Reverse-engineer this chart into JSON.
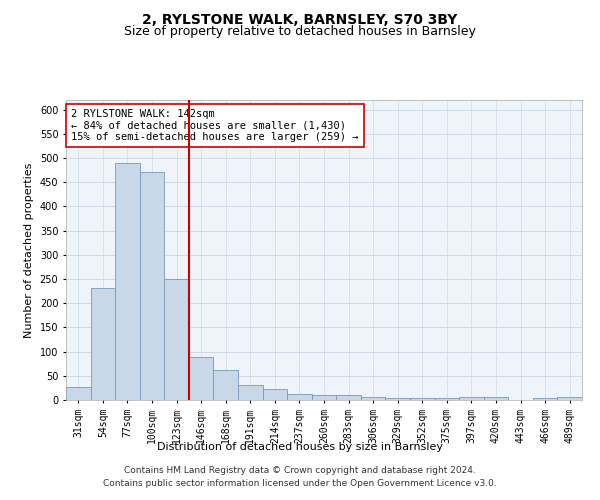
{
  "title": "2, RYLSTONE WALK, BARNSLEY, S70 3BY",
  "subtitle": "Size of property relative to detached houses in Barnsley",
  "xlabel": "Distribution of detached houses by size in Barnsley",
  "ylabel": "Number of detached properties",
  "categories": [
    "31sqm",
    "54sqm",
    "77sqm",
    "100sqm",
    "123sqm",
    "146sqm",
    "168sqm",
    "191sqm",
    "214sqm",
    "237sqm",
    "260sqm",
    "283sqm",
    "306sqm",
    "329sqm",
    "352sqm",
    "375sqm",
    "397sqm",
    "420sqm",
    "443sqm",
    "466sqm",
    "489sqm"
  ],
  "values": [
    26,
    232,
    490,
    472,
    250,
    88,
    63,
    31,
    23,
    13,
    11,
    10,
    7,
    5,
    5,
    5,
    7,
    7,
    0,
    5,
    6
  ],
  "bar_color": "#c8d8e8",
  "bar_edge_color": "#7799bb",
  "vline_color": "#cc0000",
  "vline_index": 4.5,
  "annotation_text": "2 RYLSTONE WALK: 142sqm\n← 84% of detached houses are smaller (1,430)\n15% of semi-detached houses are larger (259) →",
  "annotation_box_color": "#ffffff",
  "annotation_box_edge": "#cc0000",
  "ylim": [
    0,
    620
  ],
  "yticks": [
    0,
    50,
    100,
    150,
    200,
    250,
    300,
    350,
    400,
    450,
    500,
    550,
    600
  ],
  "grid_color": "#ccd9e8",
  "bg_color": "#eef4fa",
  "footer": "Contains HM Land Registry data © Crown copyright and database right 2024.\nContains public sector information licensed under the Open Government Licence v3.0.",
  "title_fontsize": 10,
  "subtitle_fontsize": 9,
  "ylabel_fontsize": 8,
  "xlabel_fontsize": 8,
  "tick_fontsize": 7,
  "annotation_fontsize": 7.5,
  "footer_fontsize": 6.5
}
